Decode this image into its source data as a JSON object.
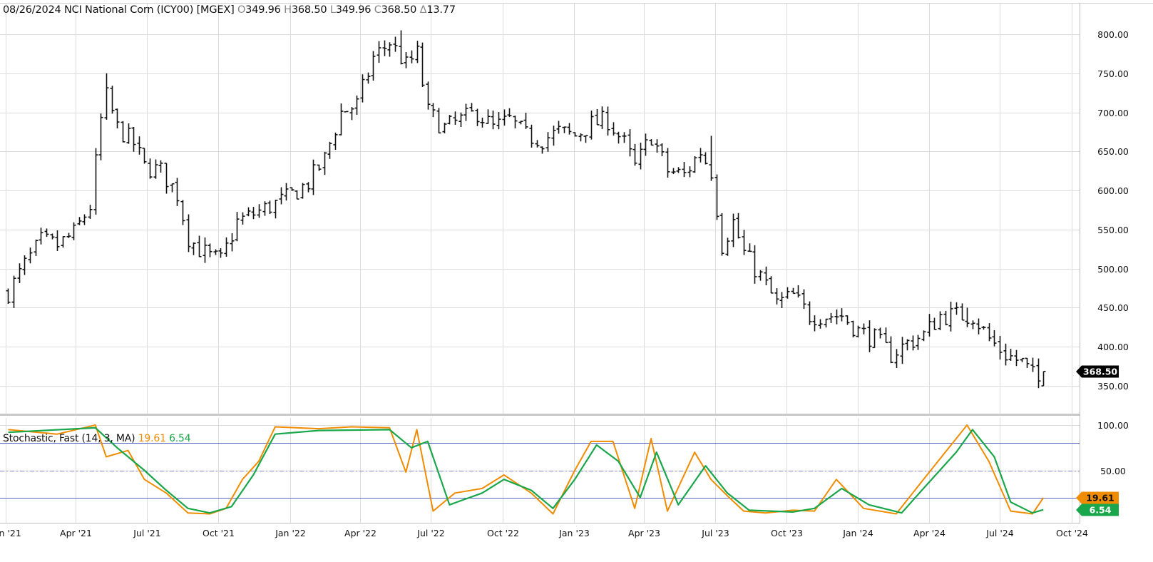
{
  "header": {
    "date": "08/26/2024",
    "symbol_name": "NCI National Corn (ICY00) [MGEX]",
    "open_label": "O",
    "open": "349.96",
    "high_label": "H",
    "high": "368.50",
    "low_label": "L",
    "low": "349.96",
    "close_label": "C",
    "close": "368.50",
    "change_label": "Δ",
    "change": "13.77"
  },
  "indicator": {
    "name": "Stochastic, Fast (14, 3, MA)",
    "k_value": "19.61",
    "d_value": "6.54"
  },
  "badges": {
    "last_price": "368.50",
    "k": "19.61",
    "d": "6.54"
  },
  "colors": {
    "price_bars": "#111111",
    "k_line": "#f08c00",
    "d_line": "#1aa64a",
    "band_lines": "#5a67c8",
    "grid": "#dcdcdc",
    "last_price_badge": "#000000"
  },
  "chart_data": [
    {
      "type": "ohlc",
      "title": "NCI National Corn (ICY00) [MGEX]",
      "interval": "weekly",
      "ylim": [
        320,
        810
      ],
      "yticks": [
        "800.00",
        "750.00",
        "700.00",
        "650.00",
        "600.00",
        "550.00",
        "500.00",
        "450.00",
        "400.00",
        "350.00"
      ],
      "xtick_labels": [
        "Jan '21",
        "Apr '21",
        "Jul '21",
        "Oct '21",
        "Jan '22",
        "Apr '22",
        "Jul '22",
        "Oct '22",
        "Jan '23",
        "Apr '23",
        "Jul '23",
        "Oct '23",
        "Jan '24",
        "Apr '24",
        "Jul '24",
        "Oct '24"
      ],
      "xtick_dates": [
        "2021-01-01",
        "2021-04-01",
        "2021-07-01",
        "2021-10-01",
        "2022-01-01",
        "2022-04-01",
        "2022-07-01",
        "2022-10-01",
        "2023-01-01",
        "2023-04-01",
        "2023-07-01",
        "2023-10-01",
        "2024-01-01",
        "2024-04-01",
        "2024-07-01",
        "2024-10-01"
      ],
      "grid": true,
      "last": 368.5,
      "close_path": [
        [
          "2021-01-04",
          470
        ],
        [
          "2021-01-25",
          505
        ],
        [
          "2021-02-15",
          535
        ],
        [
          "2021-03-08",
          530
        ],
        [
          "2021-03-29",
          545
        ],
        [
          "2021-04-19",
          580
        ],
        [
          "2021-05-03",
          690
        ],
        [
          "2021-05-10",
          720
        ],
        [
          "2021-05-24",
          680
        ],
        [
          "2021-06-14",
          660
        ],
        [
          "2021-06-28",
          630
        ],
        [
          "2021-07-19",
          625
        ],
        [
          "2021-08-09",
          595
        ],
        [
          "2021-08-23",
          540
        ],
        [
          "2021-09-06",
          525
        ],
        [
          "2021-09-20",
          515
        ],
        [
          "2021-10-04",
          510
        ],
        [
          "2021-10-25",
          560
        ],
        [
          "2021-11-15",
          570
        ],
        [
          "2021-12-06",
          580
        ],
        [
          "2021-12-27",
          590
        ],
        [
          "2022-01-24",
          610
        ],
        [
          "2022-02-14",
          640
        ],
        [
          "2022-03-07",
          700
        ],
        [
          "2022-03-28",
          710
        ],
        [
          "2022-04-18",
          770
        ],
        [
          "2022-05-09",
          790
        ],
        [
          "2022-05-30",
          760
        ],
        [
          "2022-06-13",
          775
        ],
        [
          "2022-06-27",
          700
        ],
        [
          "2022-07-18",
          680
        ],
        [
          "2022-08-08",
          690
        ],
        [
          "2022-08-29",
          700
        ],
        [
          "2022-09-19",
          680
        ],
        [
          "2022-10-10",
          690
        ],
        [
          "2022-10-31",
          670
        ],
        [
          "2022-11-21",
          665
        ],
        [
          "2022-12-12",
          675
        ],
        [
          "2023-01-02",
          670
        ],
        [
          "2023-01-23",
          685
        ],
        [
          "2023-02-13",
          690
        ],
        [
          "2023-03-06",
          660
        ],
        [
          "2023-03-20",
          630
        ],
        [
          "2023-04-10",
          670
        ],
        [
          "2023-05-01",
          625
        ],
        [
          "2023-05-22",
          620
        ],
        [
          "2023-06-12",
          650
        ],
        [
          "2023-06-26",
          625
        ],
        [
          "2023-07-10",
          530
        ],
        [
          "2023-07-24",
          560
        ],
        [
          "2023-08-07",
          520
        ],
        [
          "2023-08-28",
          490
        ],
        [
          "2023-09-18",
          455
        ],
        [
          "2023-10-09",
          465
        ],
        [
          "2023-10-30",
          440
        ],
        [
          "2023-11-20",
          440
        ],
        [
          "2023-12-11",
          440
        ],
        [
          "2024-01-01",
          420
        ],
        [
          "2024-01-22",
          410
        ],
        [
          "2024-02-12",
          390
        ],
        [
          "2024-03-04",
          405
        ],
        [
          "2024-03-25",
          415
        ],
        [
          "2024-04-15",
          440
        ],
        [
          "2024-05-06",
          440
        ],
        [
          "2024-05-27",
          440
        ],
        [
          "2024-06-17",
          410
        ],
        [
          "2024-07-08",
          390
        ],
        [
          "2024-07-29",
          380
        ],
        [
          "2024-08-19",
          355
        ],
        [
          "2024-08-26",
          368.5
        ]
      ],
      "peaks": {
        "2021-05-10": 750,
        "2022-05-23": 805,
        "2023-06-26": 670,
        "2024-05-20": 450
      }
    },
    {
      "type": "line",
      "title": "Stochastic, Fast (14, 3, MA)",
      "ylim": [
        0,
        100
      ],
      "yticks": [
        "100.00",
        "50.00"
      ],
      "bands": [
        20,
        50,
        80
      ],
      "series": [
        {
          "name": "%K",
          "current": 19.61,
          "points": [
            [
              "2021-01-04",
              95
            ],
            [
              "2021-03-08",
              90
            ],
            [
              "2021-04-26",
              100
            ],
            [
              "2021-05-10",
              65
            ],
            [
              "2021-06-07",
              72
            ],
            [
              "2021-06-28",
              40
            ],
            [
              "2021-07-26",
              25
            ],
            [
              "2021-08-23",
              3
            ],
            [
              "2021-09-20",
              2
            ],
            [
              "2021-10-11",
              8
            ],
            [
              "2021-11-01",
              40
            ],
            [
              "2021-11-22",
              60
            ],
            [
              "2021-12-13",
              98
            ],
            [
              "2022-02-07",
              96
            ],
            [
              "2022-03-21",
              98
            ],
            [
              "2022-05-09",
              97
            ],
            [
              "2022-05-30",
              48
            ],
            [
              "2022-06-13",
              95
            ],
            [
              "2022-07-04",
              5
            ],
            [
              "2022-08-01",
              25
            ],
            [
              "2022-09-05",
              30
            ],
            [
              "2022-10-03",
              45
            ],
            [
              "2022-11-07",
              25
            ],
            [
              "2022-12-05",
              2
            ],
            [
              "2023-01-02",
              50
            ],
            [
              "2023-01-23",
              82
            ],
            [
              "2023-02-20",
              82
            ],
            [
              "2023-03-20",
              8
            ],
            [
              "2023-04-10",
              85
            ],
            [
              "2023-05-01",
              5
            ],
            [
              "2023-06-05",
              70
            ],
            [
              "2023-06-26",
              40
            ],
            [
              "2023-07-17",
              22
            ],
            [
              "2023-08-07",
              5
            ],
            [
              "2023-09-04",
              3
            ],
            [
              "2023-10-09",
              6
            ],
            [
              "2023-11-06",
              5
            ],
            [
              "2023-12-04",
              40
            ],
            [
              "2024-01-08",
              8
            ],
            [
              "2024-02-19",
              2
            ],
            [
              "2024-03-25",
              40
            ],
            [
              "2024-05-06",
              85
            ],
            [
              "2024-05-20",
              100
            ],
            [
              "2024-06-17",
              60
            ],
            [
              "2024-07-15",
              5
            ],
            [
              "2024-08-12",
              2
            ],
            [
              "2024-08-26",
              19.61
            ]
          ]
        },
        {
          "name": "%D",
          "current": 6.54,
          "points": [
            [
              "2021-01-04",
              92
            ],
            [
              "2021-04-26",
              97
            ],
            [
              "2021-05-24",
              75
            ],
            [
              "2021-06-28",
              50
            ],
            [
              "2021-07-26",
              28
            ],
            [
              "2021-08-23",
              8
            ],
            [
              "2021-09-20",
              3
            ],
            [
              "2021-10-18",
              10
            ],
            [
              "2021-11-15",
              45
            ],
            [
              "2021-12-13",
              90
            ],
            [
              "2022-02-07",
              94
            ],
            [
              "2022-05-09",
              95
            ],
            [
              "2022-06-06",
              75
            ],
            [
              "2022-06-27",
              82
            ],
            [
              "2022-07-25",
              12
            ],
            [
              "2022-09-05",
              25
            ],
            [
              "2022-10-03",
              40
            ],
            [
              "2022-11-07",
              28
            ],
            [
              "2022-12-05",
              8
            ],
            [
              "2023-01-02",
              40
            ],
            [
              "2023-01-30",
              78
            ],
            [
              "2023-02-27",
              60
            ],
            [
              "2023-03-27",
              20
            ],
            [
              "2023-04-17",
              70
            ],
            [
              "2023-05-15",
              12
            ],
            [
              "2023-06-19",
              55
            ],
            [
              "2023-07-17",
              25
            ],
            [
              "2023-08-14",
              6
            ],
            [
              "2023-10-09",
              4
            ],
            [
              "2023-11-06",
              8
            ],
            [
              "2023-12-11",
              30
            ],
            [
              "2024-01-15",
              12
            ],
            [
              "2024-02-26",
              3
            ],
            [
              "2024-03-25",
              30
            ],
            [
              "2024-05-06",
              70
            ],
            [
              "2024-05-27",
              95
            ],
            [
              "2024-06-24",
              65
            ],
            [
              "2024-07-15",
              15
            ],
            [
              "2024-08-12",
              3
            ],
            [
              "2024-08-26",
              6.54
            ]
          ]
        }
      ]
    }
  ]
}
